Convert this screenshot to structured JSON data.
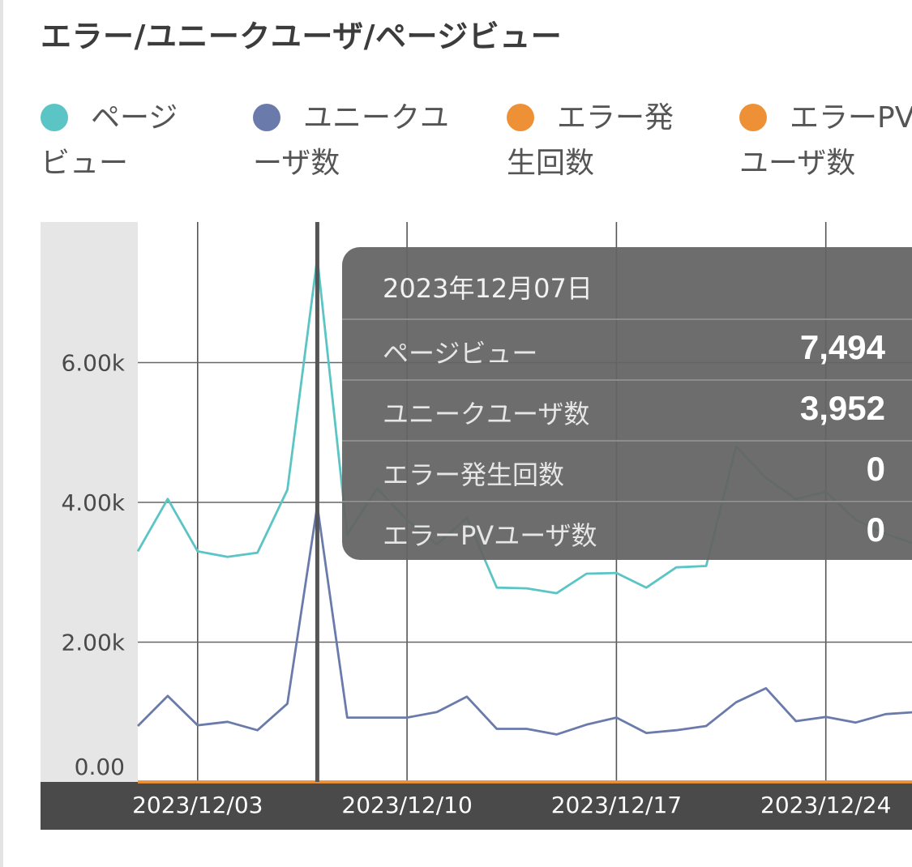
{
  "title": "エラー/ユニークユーザ/ページビュー",
  "legend": [
    {
      "label": "ページビュー",
      "color": "#5bc4c4"
    },
    {
      "label": "ユニークユーザ数",
      "color": "#6a7bab"
    },
    {
      "label": "エラー発生回数",
      "color": "#ee9035"
    },
    {
      "label": "エラーPVユーザ数",
      "color": "#ee9035"
    }
  ],
  "tooltip": {
    "date": "2023年12月07日",
    "rows": [
      {
        "label": "ページビュー",
        "value": "7,494"
      },
      {
        "label": "ユニークユーザ数",
        "value": "3,952"
      },
      {
        "label": "エラー発生回数",
        "value": "0"
      },
      {
        "label": "エラーPVユーザ数",
        "value": "0"
      }
    ]
  },
  "chart_data": {
    "type": "line",
    "x": [
      "2023/12/01",
      "2023/12/02",
      "2023/12/03",
      "2023/12/04",
      "2023/12/05",
      "2023/12/06",
      "2023/12/07",
      "2023/12/08",
      "2023/12/09",
      "2023/12/10",
      "2023/12/11",
      "2023/12/12",
      "2023/12/13",
      "2023/12/14",
      "2023/12/15",
      "2023/12/16",
      "2023/12/17",
      "2023/12/18",
      "2023/12/19",
      "2023/12/20",
      "2023/12/21",
      "2023/12/22",
      "2023/12/23",
      "2023/12/24",
      "2023/12/25",
      "2023/12/26",
      "2023/12/27"
    ],
    "x_tick_labels": [
      "2023/12/03",
      "2023/12/10",
      "2023/12/17",
      "2023/12/24"
    ],
    "series": [
      {
        "name": "ページビュー",
        "color": "#5bc4c4",
        "values": [
          3300,
          4050,
          3300,
          3220,
          3280,
          4180,
          7494,
          3540,
          4200,
          3750,
          3400,
          3780,
          2780,
          2770,
          2700,
          2980,
          2990,
          2780,
          3070,
          3090,
          4800,
          4350,
          4050,
          4150,
          3750,
          3550,
          3400
        ]
      },
      {
        "name": "ユニークユーザ数",
        "color": "#6a7bab",
        "values": [
          800,
          1230,
          810,
          860,
          740,
          1120,
          3952,
          920,
          920,
          920,
          1000,
          1220,
          760,
          760,
          680,
          820,
          920,
          700,
          740,
          800,
          1140,
          1340,
          870,
          930,
          850,
          970,
          1000
        ]
      },
      {
        "name": "エラー発生回数",
        "color": "#ee9035",
        "values": [
          0,
          0,
          0,
          0,
          0,
          0,
          0,
          0,
          0,
          0,
          0,
          0,
          0,
          0,
          0,
          0,
          0,
          0,
          0,
          0,
          0,
          0,
          0,
          0,
          0,
          0,
          0
        ]
      },
      {
        "name": "エラーPVユーザ数",
        "color": "#ee9035",
        "values": [
          0,
          0,
          0,
          0,
          0,
          0,
          0,
          0,
          0,
          0,
          0,
          0,
          0,
          0,
          0,
          0,
          0,
          0,
          0,
          0,
          0,
          0,
          0,
          0,
          0,
          0,
          0
        ]
      }
    ],
    "y_ticks": [
      "0.00",
      "2.00k",
      "4.00k",
      "6.00k"
    ],
    "ylim": [
      0,
      8000
    ],
    "grid": true,
    "highlight_x": "2023/12/07"
  }
}
